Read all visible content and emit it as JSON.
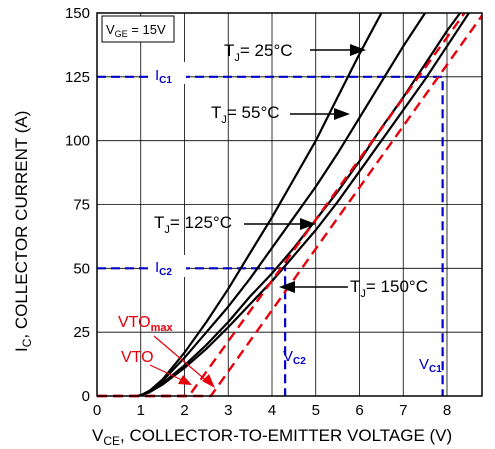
{
  "chart_data": {
    "type": "line",
    "xlabel_main": "V",
    "xlabel_sub": "CE",
    "xlabel_rest": ", COLLECTOR-TO-EMITTER VOLTAGE (V)",
    "ylabel_main": "I",
    "ylabel_sub": "C",
    "ylabel_rest": ", COLLECTOR CURRENT (A)",
    "xlim": [
      0,
      8.8
    ],
    "ylim": [
      0,
      150
    ],
    "x_ticks": [
      0,
      1,
      2,
      3,
      4,
      5,
      6,
      7,
      8
    ],
    "y_ticks": [
      0,
      25,
      50,
      75,
      100,
      125,
      150
    ],
    "grid": true,
    "condition_box": {
      "main": "V",
      "sub": "GE",
      "rest": " = 15V"
    },
    "series": [
      {
        "name": "TJ = 25°C",
        "label": {
          "main": "T",
          "sub": "J",
          "rest": "= 25°C"
        },
        "color": "#000000",
        "style": "solid",
        "x": [
          0.9,
          1.0,
          1.2,
          1.5,
          2.0,
          2.5,
          3.0,
          3.5,
          4.0,
          4.5,
          5.0,
          5.5,
          6.0,
          6.5
        ],
        "y": [
          0,
          0.3,
          2,
          6.5,
          17,
          29,
          42,
          56,
          70,
          85,
          100,
          117,
          134,
          150
        ]
      },
      {
        "name": "TJ = 55°C",
        "label": {
          "main": "T",
          "sub": "J",
          "rest": "= 55°C"
        },
        "color": "#000000",
        "style": "solid",
        "x": [
          0.9,
          1.0,
          1.2,
          1.5,
          2.0,
          2.5,
          3.0,
          3.5,
          4.0,
          4.5,
          5.0,
          5.5,
          6.0,
          6.5,
          7.0,
          7.5
        ],
        "y": [
          0,
          0.3,
          2,
          6,
          15,
          25,
          35,
          46,
          58,
          70,
          82,
          95,
          109,
          123,
          137,
          150
        ]
      },
      {
        "name": "TJ = 125°C",
        "label": {
          "main": "T",
          "sub": "J",
          "rest": "= 125°C"
        },
        "color": "#000000",
        "style": "solid",
        "x": [
          0.9,
          1.0,
          1.2,
          1.5,
          2.0,
          2.5,
          3.0,
          3.5,
          4.0,
          4.5,
          5.0,
          5.5,
          6.0,
          6.5,
          7.0,
          7.5,
          8.0,
          8.3
        ],
        "y": [
          0,
          0.3,
          1.5,
          5,
          12,
          20,
          29,
          39,
          48,
          58,
          69,
          80,
          92,
          105,
          117,
          130,
          143,
          150
        ]
      },
      {
        "name": "TJ = 150°C",
        "label": {
          "main": "T",
          "sub": "J",
          "rest": "= 150°C"
        },
        "color": "#000000",
        "style": "solid",
        "x": [
          0.9,
          1.0,
          1.2,
          1.5,
          2.0,
          2.5,
          3.0,
          3.5,
          4.0,
          4.5,
          5.0,
          5.5,
          6.0,
          6.5,
          7.0,
          7.5,
          8.0,
          8.5
        ],
        "y": [
          0,
          0.3,
          1.5,
          4.5,
          11,
          18.5,
          27,
          36,
          45,
          55,
          65,
          76,
          88,
          100,
          112,
          124,
          137,
          150
        ]
      },
      {
        "name": "VTOmax",
        "label": {
          "main": "VTO",
          "sub": "max",
          "rest": ""
        },
        "color": "#e8000b",
        "style": "dashed",
        "x": [
          0.0,
          2.6,
          8.8
        ],
        "y": [
          0,
          0,
          149
        ]
      },
      {
        "name": "VTO",
        "label": {
          "main": "VTO",
          "sub": "",
          "rest": ""
        },
        "color": "#e8000b",
        "style": "dashed",
        "x": [
          0.0,
          2.1,
          8.4
        ],
        "y": [
          0,
          0,
          150
        ]
      }
    ],
    "markers": {
      "IC1": {
        "main": "I",
        "sub": "C1",
        "y": 125
      },
      "IC2": {
        "main": "I",
        "sub": "C2",
        "y": 50
      },
      "VC1": {
        "main": "V",
        "sub": "C1",
        "x": 7.9
      },
      "VC2": {
        "main": "V",
        "sub": "C2",
        "x": 4.3
      },
      "color": "#0000cc"
    }
  }
}
